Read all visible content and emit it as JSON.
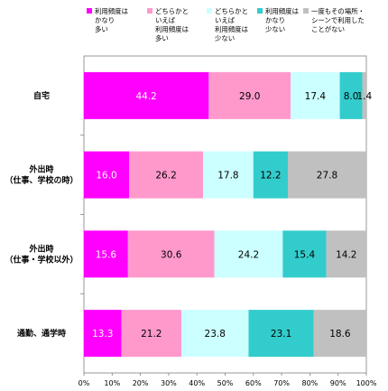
{
  "chart_data": {
    "type": "bar",
    "orientation": "horizontal",
    "stacked": true,
    "xlim": [
      0,
      100
    ],
    "x_tick_labels": [
      "0%",
      "10%",
      "20%",
      "30%",
      "40%",
      "50%",
      "60%",
      "70%",
      "80%",
      "90%",
      "100%"
    ],
    "legend_position": "top",
    "categories": [
      [
        "自宅"
      ],
      [
        "外出時",
        "（仕事、学校の時）"
      ],
      [
        "外出時",
        "（仕事・学校以外）"
      ],
      [
        "通勤、通学時"
      ]
    ],
    "series": [
      {
        "name": [
          "利用頻度は",
          "かなり",
          "多い"
        ],
        "color": "#ff00ff",
        "label_color": "#ffffff",
        "values": [
          44.2,
          16.0,
          15.6,
          13.3
        ],
        "labels": [
          "44.2",
          "16.0",
          "15.6",
          "13.3"
        ]
      },
      {
        "name": [
          "どちらかと",
          "いえば",
          "利用頻度は",
          "多い"
        ],
        "color": "#ff99cc",
        "label_color": "#000000",
        "values": [
          29.0,
          26.2,
          30.6,
          21.2
        ],
        "labels": [
          "29.0",
          "26.2",
          "30.6",
          "21.2"
        ]
      },
      {
        "name": [
          "どちらかと",
          "いえば",
          "利用頻度は",
          "少ない"
        ],
        "color": "#ccffff",
        "label_color": "#000000",
        "values": [
          17.4,
          17.8,
          24.2,
          23.8
        ],
        "labels": [
          "17.4",
          "17.8",
          "24.2",
          "23.8"
        ]
      },
      {
        "name": [
          "利用頻度は",
          "かなり",
          "少ない"
        ],
        "color": "#33cccc",
        "label_color": "#000000",
        "values": [
          8.0,
          12.2,
          15.4,
          23.1
        ],
        "labels": [
          "8.0",
          "12.2",
          "15.4",
          "23.1"
        ]
      },
      {
        "name": [
          "一度もその場所・",
          "シーンで利用した",
          "ことがない"
        ],
        "color": "#c0c0c0",
        "label_color": "#000000",
        "values": [
          1.4,
          27.8,
          14.2,
          18.6
        ],
        "labels": [
          "1.4",
          "27.8",
          "14.2",
          "18.6"
        ]
      }
    ]
  }
}
